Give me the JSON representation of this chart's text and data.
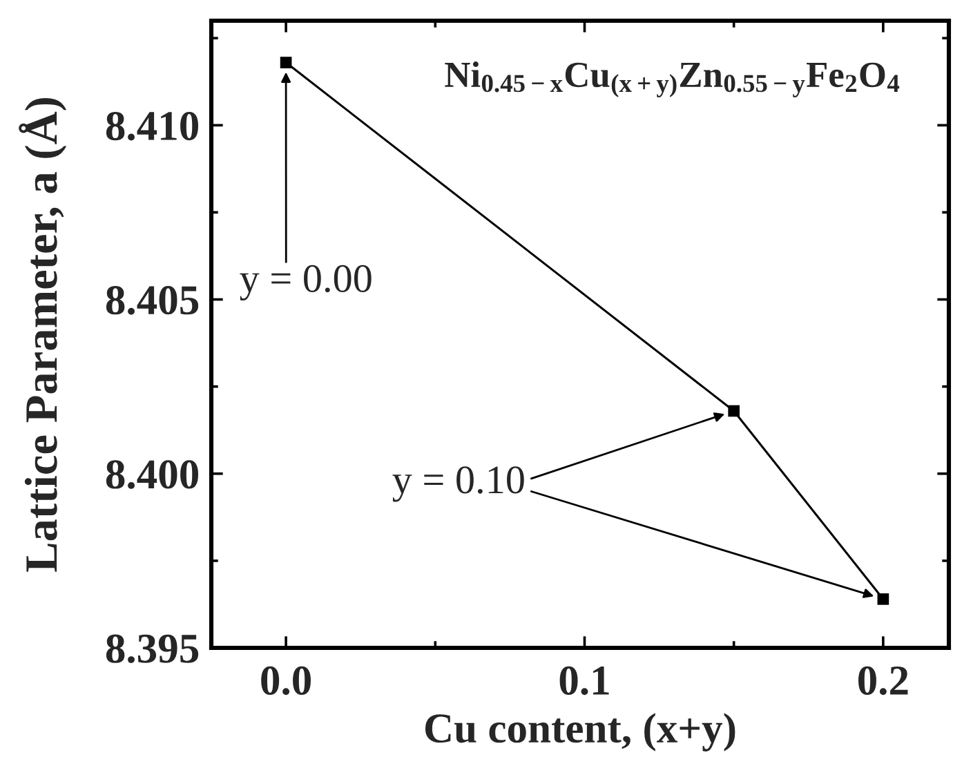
{
  "chart_data": {
    "type": "line",
    "xlabel": "Cu content, (x+y)",
    "ylabel": "Lattice Parameter, a (Å)",
    "annotations": [
      "Ni$_{0.45−x}$Cu$_{(x+y)}$Zn$_{0.55−y}$Fe$_{2}$O$_{4}$",
      {
        "text": "y = 0.00",
        "x": 0.0,
        "y": 8.4118
      },
      {
        "text": "y = 0.10",
        "x": 0.15,
        "y": 8.4018
      }
    ],
    "x": [
      0.0,
      0.15,
      0.2
    ],
    "series": [
      {
        "color": "#000000",
        "values": [
          8.4118,
          8.4018,
          8.3964
        ]
      }
    ],
    "xlim": [
      -0.025,
      0.222
    ],
    "xticks": [
      {
        "value": 0,
        "label": "0.0"
      },
      0.1,
      0.2
    ],
    "ylim": [
      8.395,
      8.413
    ],
    "yticks": [
      8.395,
      {
        "value": 8.4,
        "label": "8.400"
      },
      8.405,
      {
        "value": 8.41,
        "label": "8.410"
      }
    ],
    "marker": "square",
    "line_style": "solid",
    "grid": false
  }
}
